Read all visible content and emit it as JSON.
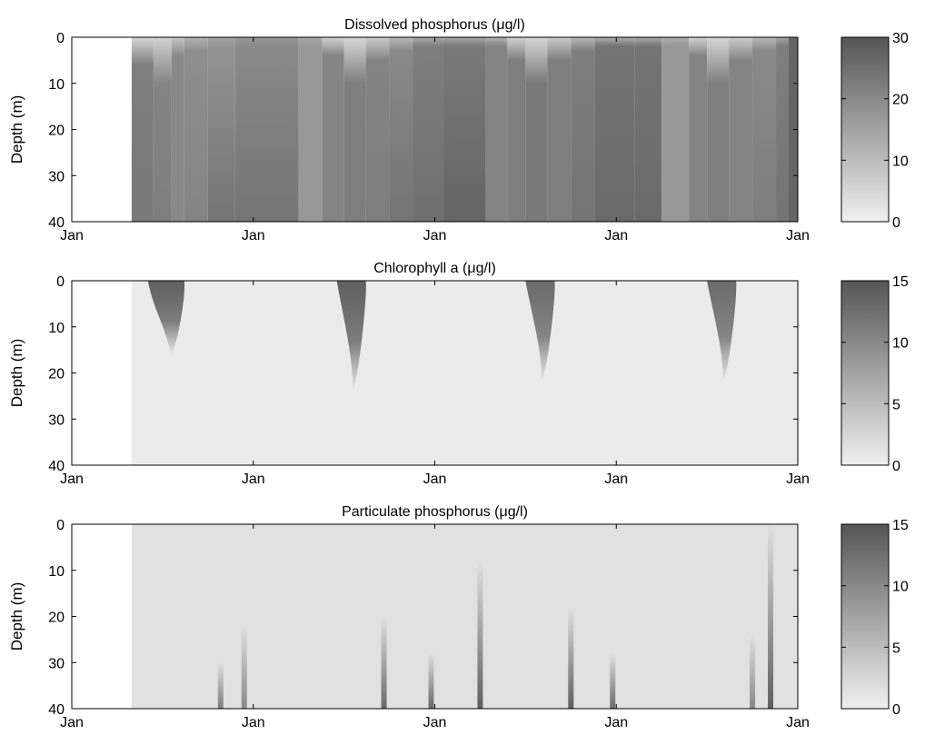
{
  "chart_data": [
    {
      "type": "heatmap",
      "title": "Dissolved phosphorus (μg/l)",
      "ylabel": "Depth (m)",
      "xlabel": "",
      "x_tick_labels": [
        "Jan",
        "Jan",
        "Jan",
        "Jan",
        "Jan"
      ],
      "y_ticks": [
        0,
        10,
        20,
        30,
        40
      ],
      "ylim": [
        40,
        0
      ],
      "colorbar": {
        "ticks": [
          0,
          10,
          20,
          30
        ],
        "range": [
          0,
          30
        ]
      },
      "colormap": [
        "#f0f0f0",
        "#555555"
      ],
      "data_start_year_fraction": 0.33,
      "columns": [
        {
          "x": 0.33,
          "value": 22,
          "surface_value": 5,
          "surface_depth": 6,
          "deep_value": 23
        },
        {
          "x": 0.45,
          "value": 21,
          "surface_value": 6,
          "surface_depth": 10,
          "deep_value": 22
        },
        {
          "x": 0.55,
          "value": 20,
          "surface_value": 8,
          "surface_depth": 4,
          "deep_value": 20
        },
        {
          "x": 0.62,
          "value": 19,
          "surface_value": 12,
          "surface_depth": 3,
          "deep_value": 21
        },
        {
          "x": 0.75,
          "value": 18,
          "surface_value": 15,
          "surface_depth": 2,
          "deep_value": 24
        },
        {
          "x": 0.9,
          "value": 20,
          "surface_value": 17,
          "surface_depth": 2,
          "deep_value": 24
        },
        {
          "x": 1.25,
          "value": 17,
          "surface_value": 14,
          "surface_depth": 2,
          "deep_value": 17
        },
        {
          "x": 1.38,
          "value": 21,
          "surface_value": 6,
          "surface_depth": 4,
          "deep_value": 21
        },
        {
          "x": 1.5,
          "value": 22,
          "surface_value": 5,
          "surface_depth": 10,
          "deep_value": 22
        },
        {
          "x": 1.62,
          "value": 21,
          "surface_value": 7,
          "surface_depth": 5,
          "deep_value": 22
        },
        {
          "x": 1.75,
          "value": 20,
          "surface_value": 11,
          "surface_depth": 3,
          "deep_value": 24
        },
        {
          "x": 1.88,
          "value": 22,
          "surface_value": 14,
          "surface_depth": 2,
          "deep_value": 25
        },
        {
          "x": 2.05,
          "value": 23,
          "surface_value": 14,
          "surface_depth": 2,
          "deep_value": 27
        },
        {
          "x": 2.28,
          "value": 21,
          "surface_value": 12,
          "surface_depth": 2,
          "deep_value": 21
        },
        {
          "x": 2.4,
          "value": 22,
          "surface_value": 6,
          "surface_depth": 5,
          "deep_value": 22
        },
        {
          "x": 2.5,
          "value": 23,
          "surface_value": 5,
          "surface_depth": 10,
          "deep_value": 23
        },
        {
          "x": 2.62,
          "value": 22,
          "surface_value": 7,
          "surface_depth": 5,
          "deep_value": 22
        },
        {
          "x": 2.75,
          "value": 22,
          "surface_value": 11,
          "surface_depth": 3,
          "deep_value": 24
        },
        {
          "x": 2.88,
          "value": 24,
          "surface_value": 13,
          "surface_depth": 2,
          "deep_value": 26
        },
        {
          "x": 3.1,
          "value": 24,
          "surface_value": 14,
          "surface_depth": 2,
          "deep_value": 26
        },
        {
          "x": 3.25,
          "value": 17,
          "surface_value": 13,
          "surface_depth": 2,
          "deep_value": 17
        },
        {
          "x": 3.4,
          "value": 21,
          "surface_value": 6,
          "surface_depth": 4,
          "deep_value": 21
        },
        {
          "x": 3.5,
          "value": 22,
          "surface_value": 5,
          "surface_depth": 10,
          "deep_value": 22
        },
        {
          "x": 3.62,
          "value": 21,
          "surface_value": 7,
          "surface_depth": 5,
          "deep_value": 21
        },
        {
          "x": 3.75,
          "value": 20,
          "surface_value": 11,
          "surface_depth": 3,
          "deep_value": 22
        },
        {
          "x": 3.88,
          "value": 22,
          "surface_value": 15,
          "surface_depth": 2,
          "deep_value": 24
        },
        {
          "x": 3.95,
          "value": 27,
          "surface_value": 27,
          "surface_depth": 0,
          "deep_value": 27
        }
      ]
    },
    {
      "type": "heatmap",
      "title": "Chlorophyll a (μg/l)",
      "ylabel": "Depth (m)",
      "xlabel": "",
      "x_tick_labels": [
        "Jan",
        "Jan",
        "Jan",
        "Jan",
        "Jan"
      ],
      "y_ticks": [
        0,
        10,
        20,
        30,
        40
      ],
      "ylim": [
        40,
        0
      ],
      "colorbar": {
        "ticks": [
          0,
          5,
          10,
          15
        ],
        "range": [
          0,
          15
        ]
      },
      "colormap": [
        "#f0f0f0",
        "#555555"
      ],
      "data_start_year_fraction": 0.33,
      "background_value": 0.5,
      "blooms": [
        {
          "x_start": 0.42,
          "x_end": 0.62,
          "value": 14,
          "max_depth": 8
        },
        {
          "x_start": 1.46,
          "x_end": 1.62,
          "value": 14,
          "max_depth": 12
        },
        {
          "x_start": 2.5,
          "x_end": 2.66,
          "value": 13,
          "max_depth": 11
        },
        {
          "x_start": 3.5,
          "x_end": 3.66,
          "value": 13,
          "max_depth": 11
        }
      ]
    },
    {
      "type": "heatmap",
      "title": "Particulate phosphorus (μg/l)",
      "ylabel": "Depth (m)",
      "xlabel": "",
      "x_tick_labels": [
        "Jan",
        "Jan",
        "Jan",
        "Jan",
        "Jan"
      ],
      "y_ticks": [
        0,
        10,
        20,
        30,
        40
      ],
      "ylim": [
        40,
        0
      ],
      "colorbar": {
        "ticks": [
          0,
          5,
          10,
          15
        ],
        "range": [
          0,
          15
        ]
      },
      "colormap": [
        "#f0f0f0",
        "#555555"
      ],
      "data_start_year_fraction": 0.33,
      "background_value": 1.5,
      "streaks": [
        {
          "x": 0.82,
          "value": 11,
          "top_depth": 30
        },
        {
          "x": 0.95,
          "value": 10,
          "top_depth": 22
        },
        {
          "x": 1.72,
          "value": 13,
          "top_depth": 20
        },
        {
          "x": 1.98,
          "value": 13,
          "top_depth": 28
        },
        {
          "x": 2.25,
          "value": 14,
          "top_depth": 8
        },
        {
          "x": 2.75,
          "value": 14,
          "top_depth": 18
        },
        {
          "x": 2.98,
          "value": 13,
          "top_depth": 28
        },
        {
          "x": 3.75,
          "value": 10,
          "top_depth": 24
        },
        {
          "x": 3.85,
          "value": 14,
          "top_depth": 0
        }
      ]
    }
  ]
}
